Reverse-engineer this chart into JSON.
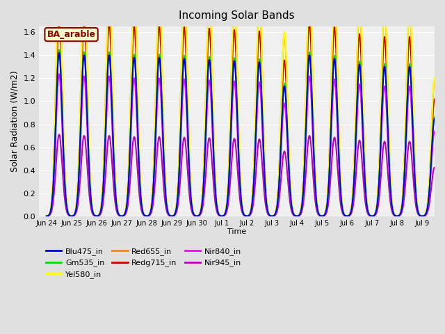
{
  "title": "Incoming Solar Bands",
  "xlabel": "Time",
  "ylabel": "Solar Radiation (W/m2)",
  "background_color": "#e0e0e0",
  "plot_bg_color": "#f0f0f0",
  "ylim": [
    0.0,
    1.65
  ],
  "yticks": [
    0.0,
    0.2,
    0.4,
    0.6,
    0.8,
    1.0,
    1.2,
    1.4,
    1.6
  ],
  "xtick_labels": [
    "Jun 24",
    "Jun 25",
    "Jun 26",
    "Jun 27",
    "Jun 28",
    "Jun 29",
    "Jun 30",
    "Jul 1",
    "Jul 2",
    "Jul 3",
    "Jul 4",
    "Jul 5",
    "Jul 6",
    "Jul 7",
    "Jul 8",
    "Jul 9"
  ],
  "num_days": 16,
  "points_per_day": 200,
  "band_label": "BA_arable",
  "series_order_plot": [
    "Nir945_in",
    "Nir840_in",
    "Redg715_in",
    "Red655_in",
    "Yel580_in",
    "Gm535_in",
    "Blu475_in"
  ],
  "series_order_legend": [
    "Blu475_in",
    "Gm535_in",
    "Yel580_in",
    "Red655_in",
    "Redg715_in",
    "Nir840_in",
    "Nir945_in"
  ],
  "series": {
    "Blu475_in": {
      "color": "#0000ee",
      "peak_scale": 1.0,
      "lw": 1.5
    },
    "Gm535_in": {
      "color": "#00dd00",
      "peak_scale": 1.02,
      "lw": 1.5
    },
    "Yel580_in": {
      "color": "#ffff00",
      "peak_scale": 1.42,
      "lw": 1.5
    },
    "Red655_in": {
      "color": "#ff8800",
      "peak_scale": 1.4,
      "lw": 1.5
    },
    "Redg715_in": {
      "color": "#cc0000",
      "peak_scale": 1.2,
      "lw": 1.5
    },
    "Nir840_in": {
      "color": "#ff00ff",
      "peak_scale": 0.87,
      "lw": 1.5
    },
    "Nir945_in": {
      "color": "#bb00bb",
      "peak_scale": 0.5,
      "lw": 1.5
    }
  },
  "day_peak_heights": [
    1.42,
    1.4,
    1.4,
    1.38,
    1.38,
    1.37,
    1.36,
    1.35,
    1.34,
    1.13,
    1.4,
    1.37,
    1.32,
    1.3,
    1.3,
    0.85
  ],
  "day_widths": [
    0.32,
    0.32,
    0.32,
    0.32,
    0.32,
    0.32,
    0.32,
    0.32,
    0.32,
    0.32,
    0.32,
    0.32,
    0.32,
    0.32,
    0.32,
    0.32
  ]
}
